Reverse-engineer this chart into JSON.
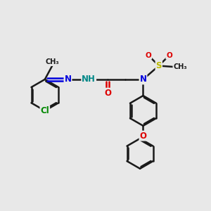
{
  "bg_color": "#e8e8e8",
  "bond_color": "#1a1a1a",
  "bond_width": 1.8,
  "dbo": 0.055,
  "atom_colors": {
    "N": "#0000dd",
    "NH": "#008888",
    "O": "#dd0000",
    "S": "#bbbb00",
    "Cl": "#008800",
    "C": "#1a1a1a"
  },
  "font_size": 8.5
}
